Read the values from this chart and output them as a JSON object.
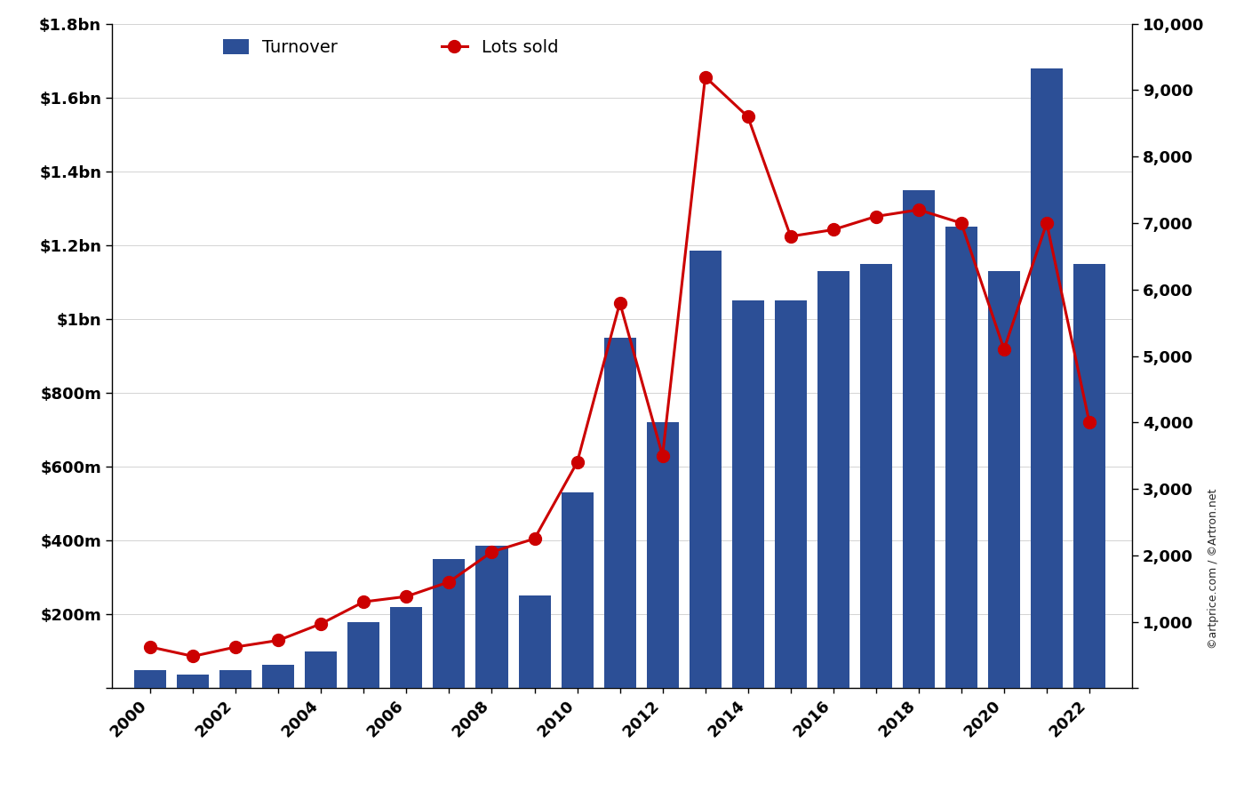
{
  "years": [
    2000,
    2001,
    2002,
    2003,
    2004,
    2005,
    2006,
    2007,
    2008,
    2009,
    2010,
    2011,
    2012,
    2013,
    2014,
    2015,
    2016,
    2017,
    2018,
    2019,
    2020,
    2021,
    2022
  ],
  "turnover": [
    50000000,
    38000000,
    50000000,
    63000000,
    100000000,
    180000000,
    220000000,
    350000000,
    385000000,
    250000000,
    530000000,
    950000000,
    720000000,
    1185000000,
    1050000000,
    1050000000,
    1130000000,
    1150000000,
    1350000000,
    1250000000,
    1130000000,
    1680000000,
    1150000000
  ],
  "lots_sold": [
    620,
    480,
    620,
    720,
    970,
    1300,
    1380,
    1600,
    2050,
    2250,
    3400,
    5800,
    3500,
    9200,
    8600,
    6800,
    6900,
    7100,
    7200,
    7000,
    5100,
    7000,
    4000
  ],
  "bar_color": "#2c4f96",
  "line_color": "#cc0000",
  "marker_color": "#cc0000",
  "background_color": "#ffffff",
  "left_yticks_labels": [
    "",
    "$200m",
    "$400m",
    "$600m",
    "$800m",
    "$1bn",
    "$1.2bn",
    "$1.4bn",
    "$1.6bn",
    "$1.8bn"
  ],
  "left_yticks_values": [
    0,
    200000000,
    400000000,
    600000000,
    800000000,
    1000000000,
    1200000000,
    1400000000,
    1600000000,
    1800000000
  ],
  "right_yticks_labels": [
    "",
    "1,000",
    "2,000",
    "3,000",
    "4,000",
    "5,000",
    "6,000",
    "7,000",
    "8,000",
    "9,000",
    "10,000"
  ],
  "right_yticks_values": [
    0,
    1000,
    2000,
    3000,
    4000,
    5000,
    6000,
    7000,
    8000,
    9000,
    10000
  ],
  "ylim_left": [
    0,
    1800000000.0
  ],
  "ylim_right": [
    0,
    10000
  ],
  "legend_turnover": "Turnover",
  "legend_lots": "Lots sold",
  "watermark": "©artprice.com / ©Artron.net",
  "xlim": [
    1999.1,
    2023.0
  ]
}
